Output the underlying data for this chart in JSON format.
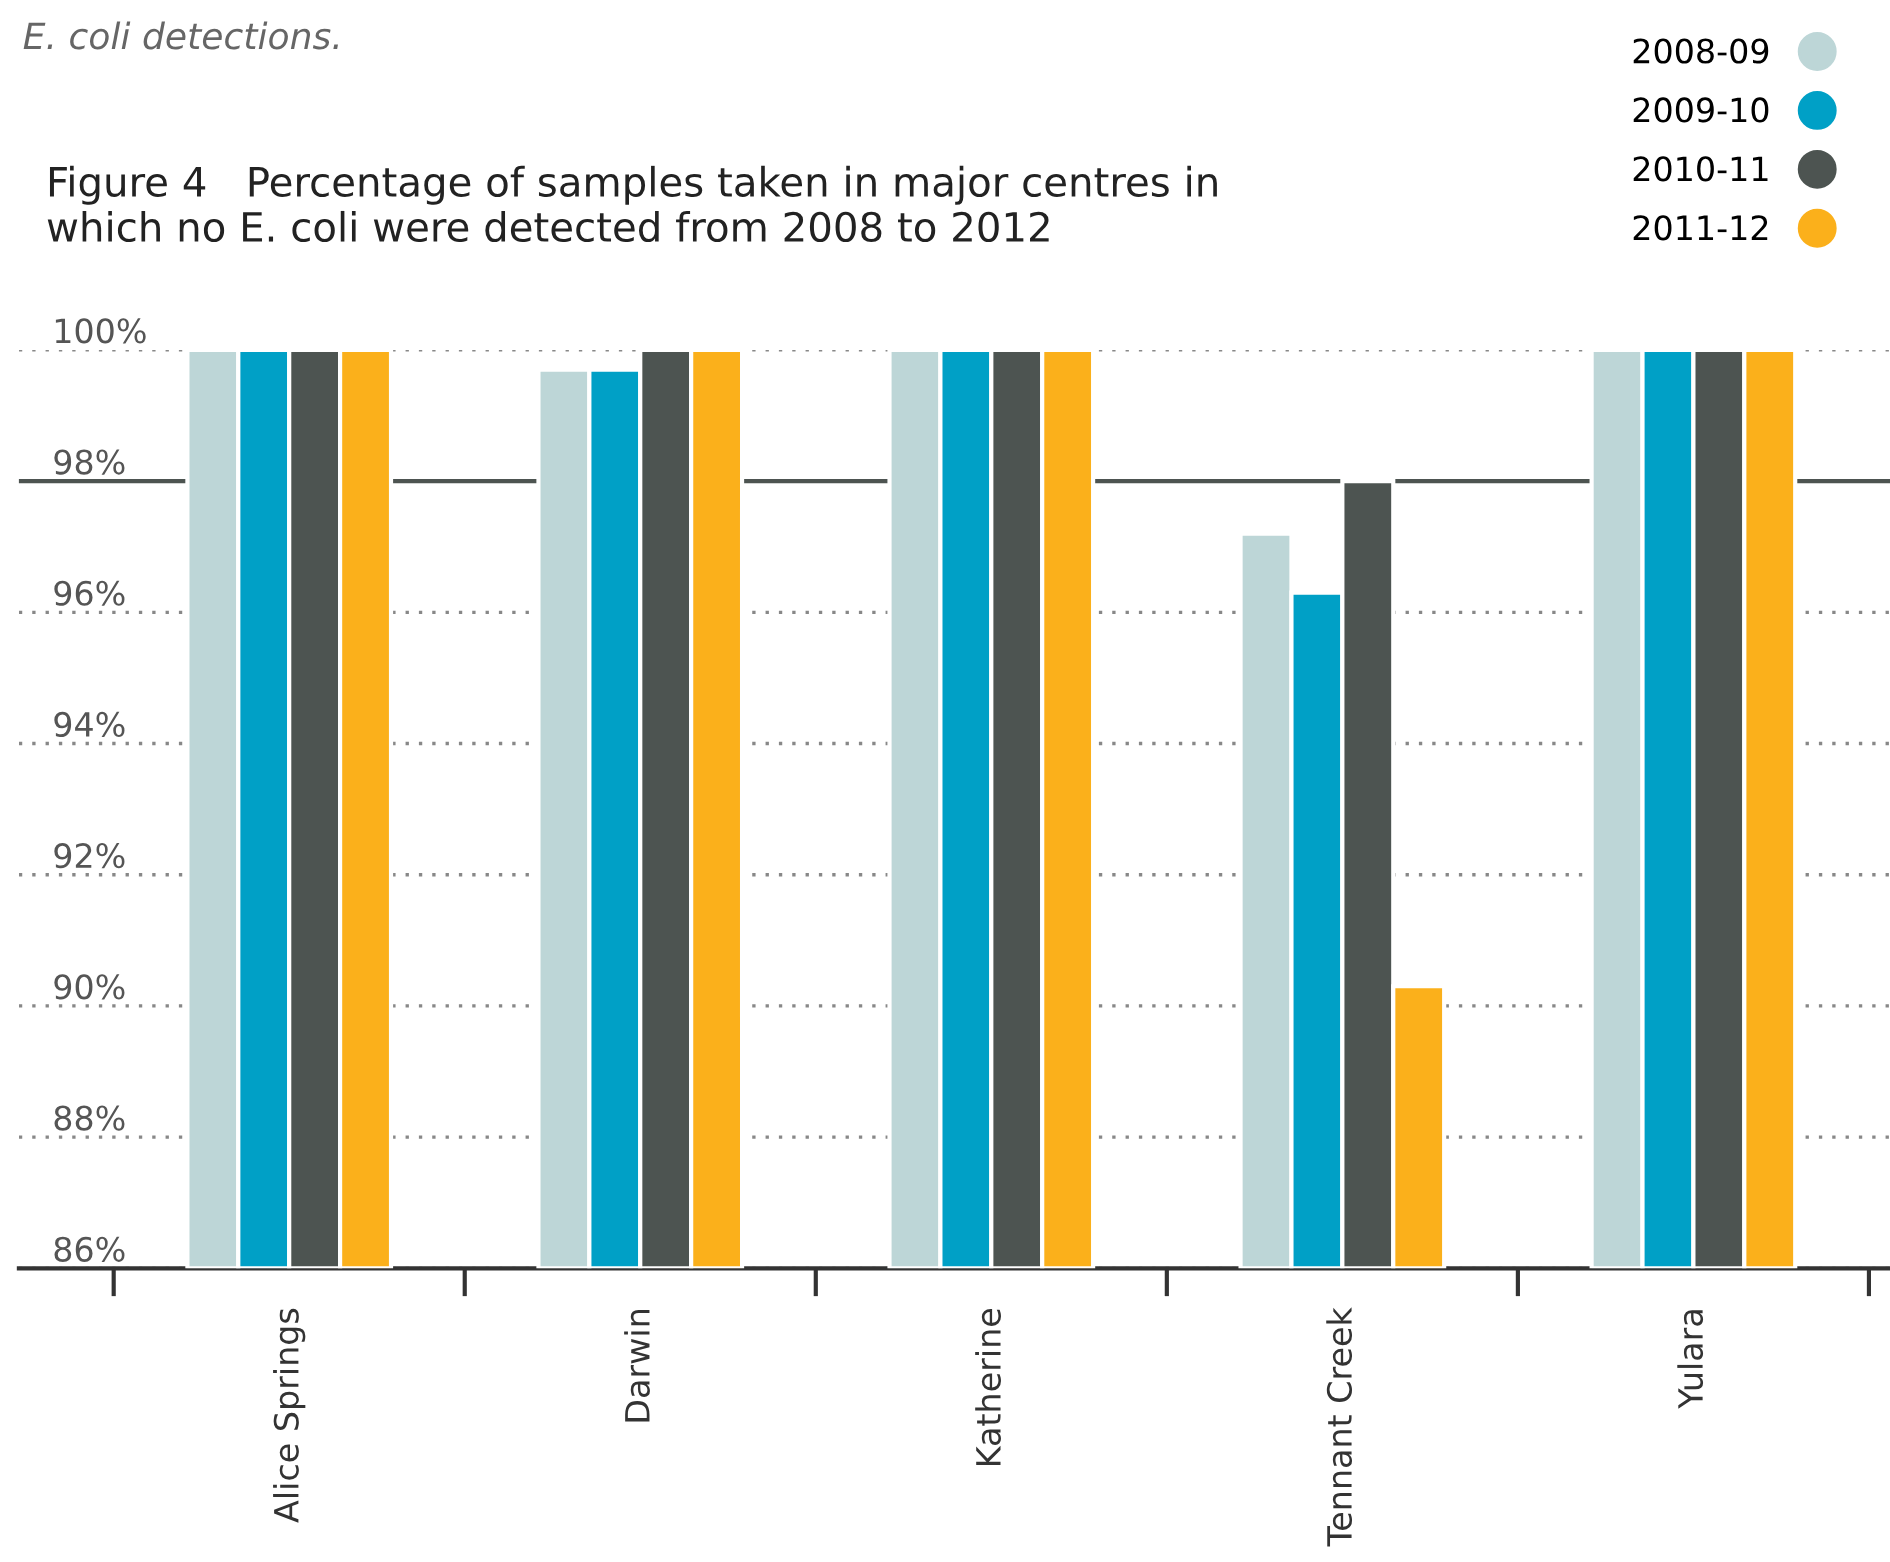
{
  "chart_data": {
    "type": "bar",
    "title": "Figure 4   Percentage of samples taken in major centres in which no E. coli were detected from 2008 to 2012",
    "annotations": [
      "E. coli detections."
    ],
    "categories": [
      "Alice Springs",
      "Darwin",
      "Katherine",
      "Tennant Creek",
      "Yulara"
    ],
    "series": [
      {
        "name": "2008-09",
        "color": "#bdd6d7",
        "values": [
          100,
          99.7,
          100,
          97.2,
          100
        ]
      },
      {
        "name": "2009-10",
        "color": "#00a0c6",
        "values": [
          100,
          99.7,
          100,
          96.3,
          100
        ]
      },
      {
        "name": "2010-11",
        "color": "#4d5451",
        "values": [
          100,
          100,
          100,
          98.0,
          100
        ]
      },
      {
        "name": "2011-12",
        "color": "#fbb01b",
        "values": [
          100,
          100,
          100,
          90.3,
          100
        ]
      }
    ],
    "ylim": [
      86,
      100
    ],
    "yticks": [
      {
        "value": 86,
        "label": "86%"
      },
      {
        "value": 88,
        "label": "88%"
      },
      {
        "value": 90,
        "label": "90%"
      },
      {
        "value": 92,
        "label": "92%"
      },
      {
        "value": 94,
        "label": "94%"
      },
      {
        "value": 96,
        "label": "96%"
      },
      {
        "value": 98,
        "label": "98%"
      },
      {
        "value": 100,
        "label": "100%"
      }
    ],
    "ref_lines": [
      {
        "axis": "y",
        "value": 98,
        "color": "#4d5451",
        "line_style": "solid"
      }
    ],
    "grid": "y",
    "legend": "top right"
  }
}
